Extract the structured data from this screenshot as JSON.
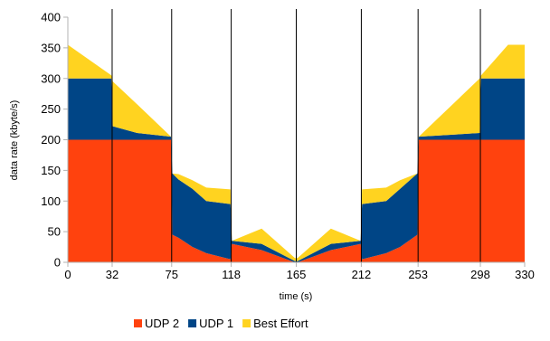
{
  "chart_data": {
    "type": "area",
    "stacked": true,
    "title": "",
    "xlabel": "time (s)",
    "ylabel": "data rate (kbyte/s)",
    "xlim": [
      0,
      330
    ],
    "ylim": [
      0,
      400
    ],
    "yticks": [
      0,
      50,
      100,
      150,
      200,
      250,
      300,
      350,
      400
    ],
    "xticks": [
      0,
      32,
      75,
      118,
      165,
      212,
      253,
      298,
      330
    ],
    "vertical_lines": [
      32,
      75,
      118,
      165,
      212,
      253,
      298
    ],
    "grid": false,
    "legend_position": "bottom",
    "x": [
      0,
      31.5,
      32.5,
      50,
      74.5,
      75.5,
      80,
      90,
      100,
      117.5,
      118.5,
      140,
      164,
      166,
      190,
      211.5,
      212.5,
      230,
      240,
      252.5,
      253.5,
      297.5,
      298.5,
      318,
      330
    ],
    "series": [
      {
        "name": "UDP 2",
        "color": "#ff420e",
        "values": [
          200,
          200,
          200,
          200,
          200,
          45,
          40,
          25,
          15,
          5,
          30,
          20,
          0,
          0,
          20,
          30,
          5,
          15,
          25,
          45,
          200,
          200,
          200,
          200,
          200
        ]
      },
      {
        "name": "UDP 1",
        "color": "#004586",
        "values": [
          100,
          100,
          22,
          11,
          5,
          100,
          95,
          95,
          85,
          90,
          5,
          10,
          2,
          2,
          10,
          5,
          90,
          85,
          95,
          100,
          5,
          11,
          100,
          100,
          100
        ]
      },
      {
        "name": "Best Effort",
        "color": "#ffd320",
        "values": [
          55,
          5,
          73,
          47,
          0,
          0,
          9,
          14,
          22,
          24,
          0,
          25,
          5,
          5,
          25,
          0,
          24,
          22,
          14,
          0,
          0,
          89,
          5,
          55,
          55
        ]
      }
    ]
  }
}
